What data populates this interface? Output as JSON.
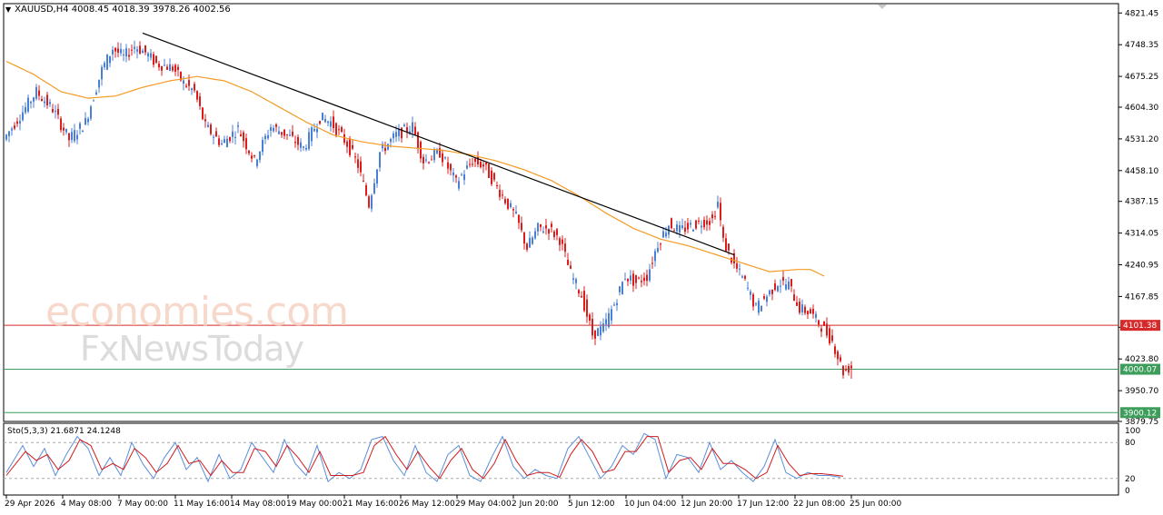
{
  "header": {
    "symbol_line": "XAUUSD,H4  4008.45 4018.39 3978.26 4002.56"
  },
  "stochastic": {
    "label": "Sto(5,3,3) 21.6871 24.1248",
    "levels": [
      80,
      20
    ],
    "axis_labels": [
      "100",
      "80",
      "20",
      "0"
    ]
  },
  "watermark": {
    "line1": "economies.com",
    "line2": "FxNewsToday"
  },
  "colors": {
    "bull": "#4a7fd6",
    "bear": "#dd1c1c",
    "ma": "#f59a23",
    "trendline": "#000000",
    "resistance": "#d62a2a",
    "support": "#3c9e5a",
    "stoch_main": "#5b8fd8",
    "stoch_signal": "#d11b1b"
  },
  "chart_data": {
    "type": "candlestick",
    "symbol": "XAUUSD",
    "timeframe": "H4",
    "ohlc_last": {
      "open": 4008.45,
      "high": 4018.39,
      "low": 3978.26,
      "close": 4002.56
    },
    "ylim": [
      3879.75,
      4843.0
    ],
    "y_ticks": [
      "4821.45",
      "4748.35",
      "4675.25",
      "4604.30",
      "4531.20",
      "4458.10",
      "4387.15",
      "4314.05",
      "4240.95",
      "4167.85",
      "4096.90",
      "4023.80",
      "3950.70",
      "3879.75"
    ],
    "x_ticks": [
      "29 Apr 2026",
      "4 May 08:00",
      "7 May 00:00",
      "11 May 16:00",
      "14 May 08:00",
      "19 May 00:00",
      "21 May 16:00",
      "26 May 12:00",
      "29 May 04:00",
      "2 Jun 20:00",
      "5 Jun 12:00",
      "10 Jun 04:00",
      "12 Jun 20:00",
      "17 Jun 12:00",
      "22 Jun 08:00",
      "25 Jun 00:00"
    ],
    "levels": [
      {
        "name": "resistance",
        "value": 4101.38,
        "label": "4101.38",
        "color": "#d62a2a"
      },
      {
        "name": "support-1",
        "value": 4000.07,
        "label": "4000.07",
        "color": "#3c9e5a"
      },
      {
        "name": "support-2",
        "value": 3900.12,
        "label": "3900.12",
        "color": "#3c9e5a"
      }
    ],
    "trendline": {
      "from": {
        "bar": 50,
        "price": 4775
      },
      "to": {
        "bar": 267,
        "price": 4264
      }
    },
    "close_path": [
      [
        0,
        4530
      ],
      [
        6,
        4585
      ],
      [
        12,
        4640
      ],
      [
        18,
        4600
      ],
      [
        24,
        4530
      ],
      [
        30,
        4570
      ],
      [
        36,
        4690
      ],
      [
        40,
        4740
      ],
      [
        44,
        4720
      ],
      [
        48,
        4745
      ],
      [
        52,
        4730
      ],
      [
        56,
        4705
      ],
      [
        62,
        4695
      ],
      [
        66,
        4660
      ],
      [
        70,
        4640
      ],
      [
        74,
        4560
      ],
      [
        80,
        4520
      ],
      [
        86,
        4555
      ],
      [
        92,
        4480
      ],
      [
        98,
        4560
      ],
      [
        104,
        4540
      ],
      [
        110,
        4510
      ],
      [
        116,
        4580
      ],
      [
        120,
        4570
      ],
      [
        126,
        4520
      ],
      [
        130,
        4470
      ],
      [
        134,
        4380
      ],
      [
        138,
        4500
      ],
      [
        144,
        4540
      ],
      [
        150,
        4560
      ],
      [
        154,
        4480
      ],
      [
        160,
        4500
      ],
      [
        166,
        4430
      ],
      [
        172,
        4480
      ],
      [
        176,
        4470
      ],
      [
        180,
        4430
      ],
      [
        184,
        4390
      ],
      [
        188,
        4350
      ],
      [
        192,
        4280
      ],
      [
        196,
        4325
      ],
      [
        200,
        4325
      ],
      [
        204,
        4300
      ],
      [
        208,
        4220
      ],
      [
        212,
        4170
      ],
      [
        216,
        4080
      ],
      [
        220,
        4095
      ],
      [
        224,
        4150
      ],
      [
        228,
        4215
      ],
      [
        232,
        4200
      ],
      [
        236,
        4215
      ],
      [
        240,
        4290
      ],
      [
        244,
        4335
      ],
      [
        248,
        4320
      ],
      [
        252,
        4330
      ],
      [
        256,
        4340
      ],
      [
        260,
        4345
      ],
      [
        262,
        4385
      ],
      [
        264,
        4295
      ],
      [
        268,
        4240
      ],
      [
        272,
        4200
      ],
      [
        276,
        4140
      ],
      [
        280,
        4170
      ],
      [
        284,
        4200
      ],
      [
        288,
        4195
      ],
      [
        292,
        4140
      ],
      [
        296,
        4130
      ],
      [
        300,
        4100
      ],
      [
        304,
        4065
      ],
      [
        308,
        3995
      ],
      [
        310,
        4002.56
      ]
    ],
    "ma_path": [
      [
        0,
        4710
      ],
      [
        10,
        4680
      ],
      [
        20,
        4640
      ],
      [
        30,
        4625
      ],
      [
        40,
        4630
      ],
      [
        50,
        4650
      ],
      [
        60,
        4665
      ],
      [
        70,
        4675
      ],
      [
        80,
        4665
      ],
      [
        90,
        4640
      ],
      [
        100,
        4605
      ],
      [
        110,
        4570
      ],
      [
        120,
        4540
      ],
      [
        130,
        4525
      ],
      [
        140,
        4515
      ],
      [
        150,
        4510
      ],
      [
        160,
        4505
      ],
      [
        170,
        4495
      ],
      [
        180,
        4480
      ],
      [
        190,
        4460
      ],
      [
        200,
        4435
      ],
      [
        210,
        4400
      ],
      [
        220,
        4360
      ],
      [
        230,
        4325
      ],
      [
        240,
        4300
      ],
      [
        250,
        4285
      ],
      [
        260,
        4265
      ],
      [
        270,
        4245
      ],
      [
        280,
        4225
      ],
      [
        290,
        4230
      ],
      [
        295,
        4230
      ],
      [
        300,
        4215
      ]
    ],
    "stochastic": {
      "params": "5,3,3",
      "main": 21.6871,
      "signal": 24.1248,
      "ylim": [
        0,
        100
      ],
      "levels": [
        80,
        20
      ],
      "main_path": [
        [
          0,
          30
        ],
        [
          6,
          75
        ],
        [
          10,
          40
        ],
        [
          14,
          70
        ],
        [
          18,
          25
        ],
        [
          22,
          60
        ],
        [
          26,
          90
        ],
        [
          30,
          70
        ],
        [
          34,
          25
        ],
        [
          38,
          55
        ],
        [
          42,
          25
        ],
        [
          46,
          80
        ],
        [
          50,
          45
        ],
        [
          54,
          20
        ],
        [
          58,
          55
        ],
        [
          62,
          80
        ],
        [
          66,
          35
        ],
        [
          70,
          55
        ],
        [
          74,
          15
        ],
        [
          78,
          60
        ],
        [
          82,
          20
        ],
        [
          86,
          35
        ],
        [
          90,
          80
        ],
        [
          94,
          55
        ],
        [
          98,
          30
        ],
        [
          102,
          85
        ],
        [
          106,
          45
        ],
        [
          110,
          25
        ],
        [
          114,
          75
        ],
        [
          118,
          15
        ],
        [
          122,
          30
        ],
        [
          126,
          20
        ],
        [
          130,
          35
        ],
        [
          134,
          85
        ],
        [
          138,
          90
        ],
        [
          142,
          50
        ],
        [
          146,
          25
        ],
        [
          150,
          75
        ],
        [
          154,
          30
        ],
        [
          158,
          15
        ],
        [
          162,
          60
        ],
        [
          166,
          75
        ],
        [
          170,
          25
        ],
        [
          174,
          15
        ],
        [
          178,
          55
        ],
        [
          182,
          90
        ],
        [
          186,
          40
        ],
        [
          190,
          20
        ],
        [
          194,
          35
        ],
        [
          198,
          25
        ],
        [
          202,
          20
        ],
        [
          206,
          70
        ],
        [
          210,
          90
        ],
        [
          214,
          55
        ],
        [
          218,
          20
        ],
        [
          222,
          40
        ],
        [
          226,
          75
        ],
        [
          230,
          60
        ],
        [
          234,
          95
        ],
        [
          238,
          85
        ],
        [
          242,
          20
        ],
        [
          246,
          60
        ],
        [
          250,
          55
        ],
        [
          254,
          30
        ],
        [
          258,
          80
        ],
        [
          262,
          35
        ],
        [
          266,
          50
        ],
        [
          270,
          30
        ],
        [
          274,
          15
        ],
        [
          278,
          40
        ],
        [
          282,
          85
        ],
        [
          286,
          30
        ],
        [
          290,
          20
        ],
        [
          294,
          30
        ],
        [
          298,
          25
        ],
        [
          302,
          25
        ],
        [
          306,
          22
        ]
      ],
      "signal_path": [
        [
          0,
          25
        ],
        [
          7,
          65
        ],
        [
          11,
          50
        ],
        [
          15,
          60
        ],
        [
          19,
          35
        ],
        [
          23,
          50
        ],
        [
          27,
          85
        ],
        [
          31,
          75
        ],
        [
          35,
          35
        ],
        [
          39,
          45
        ],
        [
          43,
          35
        ],
        [
          47,
          70
        ],
        [
          51,
          55
        ],
        [
          55,
          30
        ],
        [
          59,
          45
        ],
        [
          63,
          75
        ],
        [
          67,
          45
        ],
        [
          71,
          50
        ],
        [
          75,
          25
        ],
        [
          79,
          50
        ],
        [
          83,
          30
        ],
        [
          87,
          30
        ],
        [
          91,
          70
        ],
        [
          95,
          65
        ],
        [
          99,
          40
        ],
        [
          103,
          75
        ],
        [
          107,
          55
        ],
        [
          111,
          30
        ],
        [
          115,
          65
        ],
        [
          119,
          25
        ],
        [
          123,
          25
        ],
        [
          127,
          25
        ],
        [
          131,
          30
        ],
        [
          135,
          75
        ],
        [
          139,
          90
        ],
        [
          143,
          60
        ],
        [
          147,
          35
        ],
        [
          151,
          65
        ],
        [
          155,
          40
        ],
        [
          159,
          20
        ],
        [
          163,
          50
        ],
        [
          167,
          70
        ],
        [
          171,
          35
        ],
        [
          175,
          20
        ],
        [
          179,
          45
        ],
        [
          183,
          85
        ],
        [
          187,
          50
        ],
        [
          191,
          25
        ],
        [
          195,
          30
        ],
        [
          199,
          30
        ],
        [
          203,
          22
        ],
        [
          207,
          60
        ],
        [
          211,
          85
        ],
        [
          215,
          65
        ],
        [
          219,
          30
        ],
        [
          223,
          35
        ],
        [
          227,
          65
        ],
        [
          231,
          65
        ],
        [
          235,
          90
        ],
        [
          239,
          90
        ],
        [
          243,
          30
        ],
        [
          247,
          50
        ],
        [
          251,
          55
        ],
        [
          255,
          35
        ],
        [
          259,
          70
        ],
        [
          263,
          45
        ],
        [
          267,
          45
        ],
        [
          271,
          35
        ],
        [
          275,
          20
        ],
        [
          279,
          30
        ],
        [
          283,
          75
        ],
        [
          287,
          45
        ],
        [
          291,
          25
        ],
        [
          295,
          28
        ],
        [
          299,
          28
        ],
        [
          303,
          26
        ],
        [
          307,
          24
        ]
      ]
    },
    "xlabel": "",
    "ylabel": "",
    "grid": false,
    "legend": "none"
  }
}
